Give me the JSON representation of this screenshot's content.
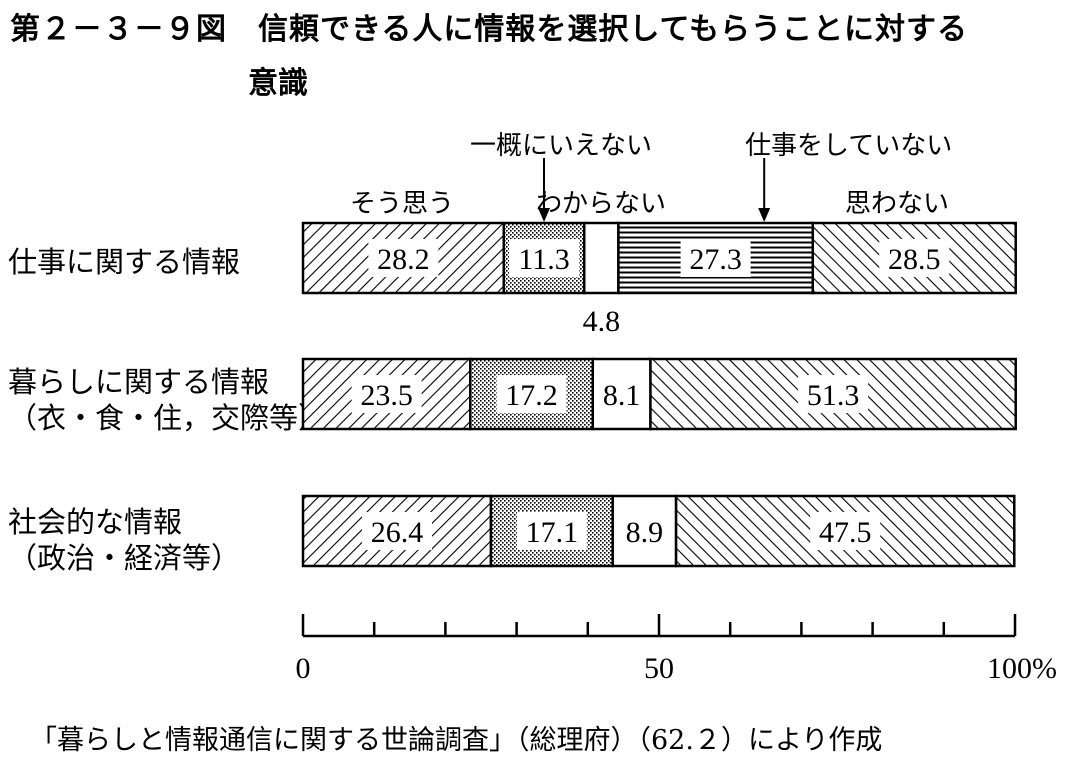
{
  "title_line1": "第２－３－９図　信頼できる人に情報を選択してもらうことに対する",
  "title_line2": "意識",
  "source": "「暮らしと情報通信に関する世論調査」（総理府）（62.２）により作成",
  "chart_data": {
    "type": "bar",
    "orientation": "horizontal",
    "stacked": true,
    "categories": [
      [
        "仕事に関する情報"
      ],
      [
        "暮らしに関する情報",
        "（衣・食・住，交際等）"
      ],
      [
        "社会的な情報",
        "（政治・経済等）"
      ]
    ],
    "series": [
      {
        "name": "そう思う",
        "values": [
          28.2,
          23.5,
          26.4
        ],
        "pattern": "diag-right"
      },
      {
        "name": "わからない",
        "values": [
          11.3,
          17.2,
          17.1
        ],
        "pattern": "dots"
      },
      {
        "name": "一概にいえない",
        "values": [
          4.8,
          8.1,
          8.9
        ],
        "pattern": "blank"
      },
      {
        "name": "仕事をしていない",
        "values": [
          27.3,
          null,
          null
        ],
        "pattern": "horizontal"
      },
      {
        "name": "思わない",
        "values": [
          28.5,
          51.3,
          47.5
        ],
        "pattern": "diag-left"
      }
    ],
    "xlim": [
      0,
      100
    ],
    "xticks": [
      {
        "value": 0,
        "label": "0"
      },
      {
        "value": 50,
        "label": "50"
      },
      {
        "value": 100,
        "label": "100%"
      }
    ],
    "minor_tick_step": 10,
    "outside_label_value": "4.8"
  }
}
